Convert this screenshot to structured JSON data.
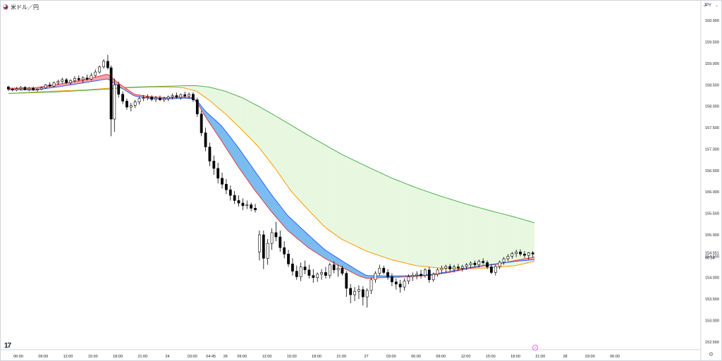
{
  "header": {
    "symbol": "米ドル／円",
    "currency": "JPY",
    "chevron": "⌄"
  },
  "footer": {
    "logo": "17",
    "settings_glyph": "⚙"
  },
  "chart_data": {
    "type": "candlestick",
    "ylim": [
      152.35,
      160.25
    ],
    "y_ticks": [
      "160.000",
      "159.500",
      "159.000",
      "158.500",
      "158.000",
      "157.500",
      "157.000",
      "156.500",
      "156.000",
      "155.500",
      "155.000",
      "154.500",
      "154.000",
      "153.500",
      "153.000",
      "152.500"
    ],
    "x_ticks": [
      "06:00",
      "09:00",
      "12:00",
      "15:00",
      "18:00",
      "21:00",
      "24",
      "03:00",
      "04:45",
      "26",
      "09:00",
      "12:00",
      "15:00",
      "18:00",
      "21:00",
      "27",
      "03:00",
      "06:00",
      "09:00",
      "12:00",
      "15:00",
      "18:00",
      "21:00",
      "28",
      "03:00",
      "06:00"
    ],
    "x_tick_positions": [
      0,
      3,
      6,
      9,
      12,
      15,
      18,
      21,
      23.25,
      25,
      27,
      30,
      33,
      36,
      39,
      42,
      45,
      48,
      51,
      54,
      57,
      60,
      63,
      66,
      69,
      72
    ],
    "last_price": "154.551",
    "countdown": "06:34",
    "last_bar_marker": "⚡",
    "candles": [
      [
        -1.2,
        158.45,
        158.48,
        158.36,
        158.4
      ],
      [
        -0.7,
        158.4,
        158.43,
        158.35,
        158.38
      ],
      [
        -0.2,
        158.38,
        158.45,
        158.35,
        158.41
      ],
      [
        0.3,
        158.41,
        158.47,
        158.37,
        158.44
      ],
      [
        0.8,
        158.44,
        158.47,
        158.37,
        158.39
      ],
      [
        1.3,
        158.39,
        158.45,
        158.35,
        158.42
      ],
      [
        1.8,
        158.42,
        158.46,
        158.36,
        158.38
      ],
      [
        2.3,
        158.38,
        158.42,
        158.34,
        158.4
      ],
      [
        2.8,
        158.4,
        158.46,
        158.38,
        158.43
      ],
      [
        3.3,
        158.43,
        158.52,
        158.41,
        158.5
      ],
      [
        3.8,
        158.5,
        158.56,
        158.45,
        158.47
      ],
      [
        4.3,
        158.47,
        158.58,
        158.44,
        158.55
      ],
      [
        4.8,
        158.55,
        158.62,
        158.5,
        158.58
      ],
      [
        5.3,
        158.58,
        158.67,
        158.54,
        158.62
      ],
      [
        5.8,
        158.62,
        158.66,
        158.52,
        158.55
      ],
      [
        6.3,
        158.55,
        158.63,
        158.5,
        158.6
      ],
      [
        6.8,
        158.6,
        158.7,
        158.56,
        158.65
      ],
      [
        7.3,
        158.65,
        158.72,
        158.58,
        158.62
      ],
      [
        7.8,
        158.62,
        158.7,
        158.55,
        158.66
      ],
      [
        8.3,
        158.66,
        158.74,
        158.6,
        158.63
      ],
      [
        8.8,
        158.63,
        158.78,
        158.6,
        158.72
      ],
      [
        9.3,
        158.72,
        158.86,
        158.68,
        158.8
      ],
      [
        9.8,
        158.8,
        158.95,
        158.76,
        158.92
      ],
      [
        10.3,
        158.92,
        159.1,
        158.88,
        159.05
      ],
      [
        10.8,
        159.05,
        159.2,
        158.86,
        158.9
      ],
      [
        11.2,
        158.9,
        158.95,
        157.3,
        157.7
      ],
      [
        11.6,
        157.7,
        158.65,
        157.4,
        158.5
      ],
      [
        12.1,
        158.5,
        158.58,
        158.2,
        158.28
      ],
      [
        12.6,
        158.28,
        158.35,
        158.05,
        158.12
      ],
      [
        13.1,
        158.12,
        158.18,
        157.92,
        157.98
      ],
      [
        13.6,
        157.98,
        158.08,
        157.88,
        158.02
      ],
      [
        14.1,
        158.02,
        158.15,
        157.96,
        158.1
      ],
      [
        14.6,
        158.1,
        158.22,
        158.04,
        158.18
      ],
      [
        15.1,
        158.18,
        158.26,
        158.12,
        158.2
      ],
      [
        15.6,
        158.2,
        158.28,
        158.14,
        158.22
      ],
      [
        16.1,
        158.22,
        158.26,
        158.12,
        158.16
      ],
      [
        16.6,
        158.16,
        158.24,
        158.1,
        158.19
      ],
      [
        17.1,
        158.19,
        158.25,
        158.12,
        158.15
      ],
      [
        17.6,
        158.15,
        158.22,
        158.1,
        158.18
      ],
      [
        18.1,
        158.18,
        158.25,
        158.12,
        158.22
      ],
      [
        18.6,
        158.22,
        158.3,
        158.16,
        158.25
      ],
      [
        19.1,
        158.25,
        158.32,
        158.18,
        158.21
      ],
      [
        19.6,
        158.21,
        158.3,
        158.15,
        158.27
      ],
      [
        20.1,
        158.27,
        158.34,
        158.2,
        158.24
      ],
      [
        20.6,
        158.24,
        158.32,
        158.18,
        158.28
      ],
      [
        21.1,
        158.28,
        158.33,
        158.1,
        158.15
      ],
      [
        21.6,
        158.15,
        158.2,
        157.75,
        157.82
      ],
      [
        22.1,
        157.82,
        157.9,
        157.3,
        157.38
      ],
      [
        22.6,
        157.38,
        157.5,
        156.95,
        157.05
      ],
      [
        23.1,
        157.05,
        157.15,
        156.6,
        156.72
      ],
      [
        23.6,
        156.72,
        156.85,
        156.4,
        156.55
      ],
      [
        24.1,
        156.55,
        156.68,
        156.2,
        156.32
      ],
      [
        24.6,
        156.32,
        156.45,
        156.08,
        156.18
      ],
      [
        25.1,
        156.18,
        156.3,
        155.95,
        156.05
      ],
      [
        25.6,
        156.05,
        156.15,
        155.8,
        155.92
      ],
      [
        26.1,
        155.92,
        156.02,
        155.72,
        155.8
      ],
      [
        26.6,
        155.8,
        155.92,
        155.66,
        155.74
      ],
      [
        27.1,
        155.74,
        155.85,
        155.58,
        155.68
      ],
      [
        27.6,
        155.68,
        155.8,
        155.6,
        155.7
      ],
      [
        28.1,
        155.7,
        155.75,
        155.55,
        155.62
      ],
      [
        28.6,
        155.62,
        155.72,
        155.52,
        155.58
      ],
      [
        29.1,
        154.6,
        155.1,
        154.4,
        155.0
      ],
      [
        29.6,
        155.0,
        155.1,
        154.2,
        154.45
      ],
      [
        30.1,
        154.45,
        154.9,
        154.3,
        154.8
      ],
      [
        30.6,
        154.8,
        155.15,
        154.65,
        155.05
      ],
      [
        31.1,
        155.05,
        155.3,
        154.85,
        154.95
      ],
      [
        31.6,
        154.95,
        155.1,
        154.6,
        154.7
      ],
      [
        32.1,
        154.7,
        154.85,
        154.45,
        154.55
      ],
      [
        32.6,
        154.55,
        154.65,
        154.25,
        154.32
      ],
      [
        33.1,
        154.32,
        154.45,
        154.05,
        154.15
      ],
      [
        33.6,
        154.15,
        154.28,
        153.95,
        154.02
      ],
      [
        34.1,
        154.02,
        154.35,
        153.92,
        154.25
      ],
      [
        34.6,
        154.25,
        154.4,
        154.08,
        154.18
      ],
      [
        35.1,
        154.18,
        154.3,
        153.98,
        154.05
      ],
      [
        35.6,
        154.05,
        154.2,
        153.88,
        154.0
      ],
      [
        36.1,
        154.0,
        154.12,
        153.9,
        154.08
      ],
      [
        36.6,
        154.08,
        154.2,
        153.95,
        154.12
      ],
      [
        37.1,
        154.12,
        154.25,
        153.98,
        154.05
      ],
      [
        37.6,
        154.05,
        154.35,
        153.98,
        154.3
      ],
      [
        38.1,
        154.3,
        154.38,
        154.1,
        154.18
      ],
      [
        38.6,
        154.18,
        154.3,
        154.02,
        154.22
      ],
      [
        39.1,
        154.22,
        154.28,
        154.05,
        154.1
      ],
      [
        39.6,
        154.1,
        154.15,
        153.55,
        153.75
      ],
      [
        40.1,
        153.75,
        153.85,
        153.4,
        153.6
      ],
      [
        40.6,
        153.6,
        153.78,
        153.45,
        153.68
      ],
      [
        41.1,
        153.68,
        153.82,
        153.5,
        153.72
      ],
      [
        41.6,
        153.72,
        153.8,
        153.35,
        153.55
      ],
      [
        42.1,
        153.55,
        153.75,
        153.3,
        153.7
      ],
      [
        42.6,
        153.7,
        154.0,
        153.62,
        153.95
      ],
      [
        43.1,
        153.95,
        154.15,
        153.88,
        154.1
      ],
      [
        43.6,
        154.1,
        154.3,
        154.05,
        154.22
      ],
      [
        44.1,
        154.22,
        154.28,
        154.08,
        154.12
      ],
      [
        44.6,
        154.12,
        154.2,
        153.95,
        154.02
      ],
      [
        45.1,
        154.02,
        154.1,
        153.8,
        153.9
      ],
      [
        45.6,
        153.9,
        153.98,
        153.72,
        153.85
      ],
      [
        46.1,
        153.85,
        153.95,
        153.65,
        153.78
      ],
      [
        46.6,
        153.78,
        153.98,
        153.7,
        153.92
      ],
      [
        47.1,
        153.92,
        154.08,
        153.85,
        154.02
      ],
      [
        47.6,
        154.02,
        154.12,
        153.92,
        154.05
      ],
      [
        48.1,
        154.05,
        154.15,
        153.96,
        154.08
      ],
      [
        48.6,
        154.08,
        154.18,
        153.98,
        154.05
      ],
      [
        49.1,
        154.05,
        154.22,
        154.0,
        154.18
      ],
      [
        49.6,
        154.18,
        154.25,
        153.88,
        153.95
      ],
      [
        50.1,
        153.95,
        154.12,
        153.9,
        154.08
      ],
      [
        50.6,
        154.08,
        154.22,
        154.02,
        154.18
      ],
      [
        51.1,
        154.18,
        154.28,
        154.1,
        154.22
      ],
      [
        51.6,
        154.22,
        154.3,
        154.12,
        154.26
      ],
      [
        52.1,
        154.26,
        154.32,
        154.15,
        154.2
      ],
      [
        52.6,
        154.2,
        154.3,
        154.12,
        154.25
      ],
      [
        53.1,
        154.25,
        154.32,
        154.15,
        154.22
      ],
      [
        53.6,
        154.22,
        154.3,
        154.14,
        154.26
      ],
      [
        54.1,
        154.26,
        154.34,
        154.18,
        154.3
      ],
      [
        54.6,
        154.3,
        154.38,
        154.22,
        154.34
      ],
      [
        55.1,
        154.34,
        154.4,
        154.26,
        154.3
      ],
      [
        55.6,
        154.3,
        154.42,
        154.24,
        154.38
      ],
      [
        56.1,
        154.38,
        154.45,
        154.3,
        154.35
      ],
      [
        56.6,
        154.35,
        154.4,
        154.2,
        154.25
      ],
      [
        57.1,
        154.25,
        154.32,
        154.08,
        154.12
      ],
      [
        57.6,
        154.12,
        154.3,
        154.05,
        154.26
      ],
      [
        58.1,
        154.26,
        154.4,
        154.2,
        154.36
      ],
      [
        58.6,
        154.36,
        154.48,
        154.3,
        154.44
      ],
      [
        59.1,
        154.44,
        154.55,
        154.38,
        154.5
      ],
      [
        59.6,
        154.5,
        154.6,
        154.44,
        154.56
      ],
      [
        60.1,
        154.56,
        154.65,
        154.48,
        154.6
      ],
      [
        60.6,
        154.6,
        154.66,
        154.5,
        154.55
      ],
      [
        61.1,
        154.55,
        154.62,
        154.46,
        154.52
      ],
      [
        61.6,
        154.52,
        154.6,
        154.42,
        154.58
      ],
      [
        62.1,
        154.58,
        154.62,
        154.48,
        154.551
      ]
    ],
    "ribbons": {
      "fast": {
        "x": [
          -1.2,
          2,
          5,
          8,
          10.8,
          12,
          14,
          16,
          18,
          20,
          21,
          21.6,
          22.6,
          24.5,
          26.5,
          28.5,
          30.5,
          32.5,
          35,
          37,
          39,
          41,
          42,
          44,
          46,
          48,
          50,
          52,
          54,
          56,
          58,
          60,
          62.3
        ],
        "a": [
          158.42,
          158.43,
          158.52,
          158.62,
          158.75,
          158.55,
          158.28,
          158.22,
          158.2,
          158.22,
          158.2,
          158.08,
          157.75,
          157.2,
          156.6,
          156.05,
          155.55,
          155.1,
          154.7,
          154.45,
          154.25,
          154.05,
          153.98,
          154,
          154.01,
          154.03,
          154.06,
          154.12,
          154.2,
          154.27,
          154.32,
          154.4,
          154.48
        ],
        "b": [
          158.39,
          158.38,
          158.46,
          158.55,
          158.64,
          158.48,
          158.24,
          158.18,
          158.17,
          158.19,
          158.18,
          158.12,
          157.88,
          157.55,
          157.05,
          156.5,
          155.95,
          155.45,
          155.0,
          154.65,
          154.4,
          154.16,
          154.05,
          154.04,
          154.04,
          154.05,
          154.08,
          154.14,
          154.22,
          154.28,
          154.33,
          154.38,
          154.42
        ]
      },
      "slow": {
        "x": [
          -1.2,
          4,
          8,
          10.8,
          13,
          16,
          18.5,
          20,
          21.5,
          23,
          25,
          27,
          29,
          31,
          33,
          35,
          37,
          39,
          42,
          45,
          48,
          51,
          54,
          57,
          60,
          62.3
        ],
        "a": [
          158.3,
          158.35,
          158.38,
          158.42,
          158.43,
          158.45,
          158.45,
          158.43,
          158.35,
          158.15,
          157.82,
          157.45,
          157.05,
          156.55,
          156.0,
          155.58,
          155.18,
          154.9,
          154.62,
          154.42,
          154.28,
          154.22,
          154.21,
          154.23,
          154.28,
          154.38
        ],
        "b": [
          158.3,
          158.33,
          158.37,
          158.4,
          158.44,
          158.46,
          158.47,
          158.48,
          158.48,
          158.45,
          158.35,
          158.2,
          158.0,
          157.78,
          157.55,
          157.32,
          157.1,
          156.88,
          156.6,
          156.33,
          156.1,
          155.9,
          155.72,
          155.56,
          155.41,
          155.28
        ]
      }
    },
    "colors": {
      "bull_body": "#ffffff",
      "bear_body": "#000000",
      "candle_edge": "#000000",
      "fast_up_fill": "#f7a3a8",
      "fast_dn_fill": "#7bbcf0",
      "fast_line_a": "#e5393a",
      "fast_line_b": "#2962ff",
      "slow_up_fill": "#fdf2c4",
      "slow_dn_fill": "#e8f8e0",
      "slow_line_a": "#ff9800",
      "slow_line_b": "#4caf50"
    }
  }
}
